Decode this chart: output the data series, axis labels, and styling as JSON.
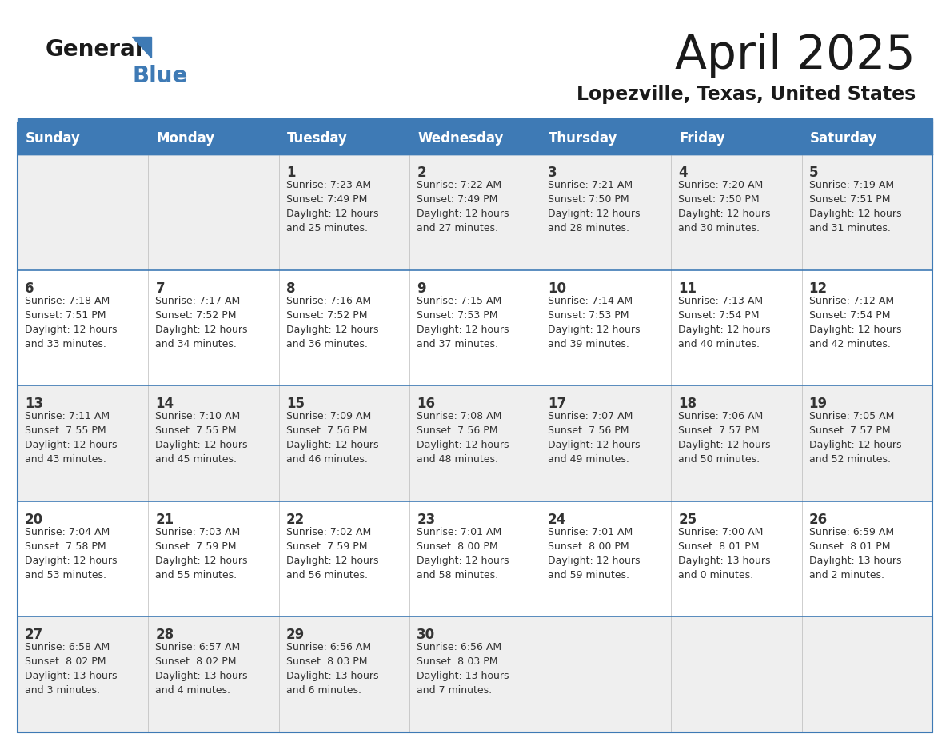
{
  "title": "April 2025",
  "subtitle": "Lopezville, Texas, United States",
  "header_bg_color": "#3E7AB5",
  "header_text_color": "#FFFFFF",
  "cell_bg_color_odd": "#EFEFEF",
  "cell_bg_color_even": "#FFFFFF",
  "text_color": "#333333",
  "border_color": "#3E7AB5",
  "separator_color": "#3E7AB5",
  "days_of_week": [
    "Sunday",
    "Monday",
    "Tuesday",
    "Wednesday",
    "Thursday",
    "Friday",
    "Saturday"
  ],
  "weeks": [
    [
      {
        "day": "",
        "sunrise": "",
        "sunset": "",
        "daylight": ""
      },
      {
        "day": "",
        "sunrise": "",
        "sunset": "",
        "daylight": ""
      },
      {
        "day": "1",
        "sunrise": "Sunrise: 7:23 AM",
        "sunset": "Sunset: 7:49 PM",
        "daylight": "Daylight: 12 hours\nand 25 minutes."
      },
      {
        "day": "2",
        "sunrise": "Sunrise: 7:22 AM",
        "sunset": "Sunset: 7:49 PM",
        "daylight": "Daylight: 12 hours\nand 27 minutes."
      },
      {
        "day": "3",
        "sunrise": "Sunrise: 7:21 AM",
        "sunset": "Sunset: 7:50 PM",
        "daylight": "Daylight: 12 hours\nand 28 minutes."
      },
      {
        "day": "4",
        "sunrise": "Sunrise: 7:20 AM",
        "sunset": "Sunset: 7:50 PM",
        "daylight": "Daylight: 12 hours\nand 30 minutes."
      },
      {
        "day": "5",
        "sunrise": "Sunrise: 7:19 AM",
        "sunset": "Sunset: 7:51 PM",
        "daylight": "Daylight: 12 hours\nand 31 minutes."
      }
    ],
    [
      {
        "day": "6",
        "sunrise": "Sunrise: 7:18 AM",
        "sunset": "Sunset: 7:51 PM",
        "daylight": "Daylight: 12 hours\nand 33 minutes."
      },
      {
        "day": "7",
        "sunrise": "Sunrise: 7:17 AM",
        "sunset": "Sunset: 7:52 PM",
        "daylight": "Daylight: 12 hours\nand 34 minutes."
      },
      {
        "day": "8",
        "sunrise": "Sunrise: 7:16 AM",
        "sunset": "Sunset: 7:52 PM",
        "daylight": "Daylight: 12 hours\nand 36 minutes."
      },
      {
        "day": "9",
        "sunrise": "Sunrise: 7:15 AM",
        "sunset": "Sunset: 7:53 PM",
        "daylight": "Daylight: 12 hours\nand 37 minutes."
      },
      {
        "day": "10",
        "sunrise": "Sunrise: 7:14 AM",
        "sunset": "Sunset: 7:53 PM",
        "daylight": "Daylight: 12 hours\nand 39 minutes."
      },
      {
        "day": "11",
        "sunrise": "Sunrise: 7:13 AM",
        "sunset": "Sunset: 7:54 PM",
        "daylight": "Daylight: 12 hours\nand 40 minutes."
      },
      {
        "day": "12",
        "sunrise": "Sunrise: 7:12 AM",
        "sunset": "Sunset: 7:54 PM",
        "daylight": "Daylight: 12 hours\nand 42 minutes."
      }
    ],
    [
      {
        "day": "13",
        "sunrise": "Sunrise: 7:11 AM",
        "sunset": "Sunset: 7:55 PM",
        "daylight": "Daylight: 12 hours\nand 43 minutes."
      },
      {
        "day": "14",
        "sunrise": "Sunrise: 7:10 AM",
        "sunset": "Sunset: 7:55 PM",
        "daylight": "Daylight: 12 hours\nand 45 minutes."
      },
      {
        "day": "15",
        "sunrise": "Sunrise: 7:09 AM",
        "sunset": "Sunset: 7:56 PM",
        "daylight": "Daylight: 12 hours\nand 46 minutes."
      },
      {
        "day": "16",
        "sunrise": "Sunrise: 7:08 AM",
        "sunset": "Sunset: 7:56 PM",
        "daylight": "Daylight: 12 hours\nand 48 minutes."
      },
      {
        "day": "17",
        "sunrise": "Sunrise: 7:07 AM",
        "sunset": "Sunset: 7:56 PM",
        "daylight": "Daylight: 12 hours\nand 49 minutes."
      },
      {
        "day": "18",
        "sunrise": "Sunrise: 7:06 AM",
        "sunset": "Sunset: 7:57 PM",
        "daylight": "Daylight: 12 hours\nand 50 minutes."
      },
      {
        "day": "19",
        "sunrise": "Sunrise: 7:05 AM",
        "sunset": "Sunset: 7:57 PM",
        "daylight": "Daylight: 12 hours\nand 52 minutes."
      }
    ],
    [
      {
        "day": "20",
        "sunrise": "Sunrise: 7:04 AM",
        "sunset": "Sunset: 7:58 PM",
        "daylight": "Daylight: 12 hours\nand 53 minutes."
      },
      {
        "day": "21",
        "sunrise": "Sunrise: 7:03 AM",
        "sunset": "Sunset: 7:59 PM",
        "daylight": "Daylight: 12 hours\nand 55 minutes."
      },
      {
        "day": "22",
        "sunrise": "Sunrise: 7:02 AM",
        "sunset": "Sunset: 7:59 PM",
        "daylight": "Daylight: 12 hours\nand 56 minutes."
      },
      {
        "day": "23",
        "sunrise": "Sunrise: 7:01 AM",
        "sunset": "Sunset: 8:00 PM",
        "daylight": "Daylight: 12 hours\nand 58 minutes."
      },
      {
        "day": "24",
        "sunrise": "Sunrise: 7:01 AM",
        "sunset": "Sunset: 8:00 PM",
        "daylight": "Daylight: 12 hours\nand 59 minutes."
      },
      {
        "day": "25",
        "sunrise": "Sunrise: 7:00 AM",
        "sunset": "Sunset: 8:01 PM",
        "daylight": "Daylight: 13 hours\nand 0 minutes."
      },
      {
        "day": "26",
        "sunrise": "Sunrise: 6:59 AM",
        "sunset": "Sunset: 8:01 PM",
        "daylight": "Daylight: 13 hours\nand 2 minutes."
      }
    ],
    [
      {
        "day": "27",
        "sunrise": "Sunrise: 6:58 AM",
        "sunset": "Sunset: 8:02 PM",
        "daylight": "Daylight: 13 hours\nand 3 minutes."
      },
      {
        "day": "28",
        "sunrise": "Sunrise: 6:57 AM",
        "sunset": "Sunset: 8:02 PM",
        "daylight": "Daylight: 13 hours\nand 4 minutes."
      },
      {
        "day": "29",
        "sunrise": "Sunrise: 6:56 AM",
        "sunset": "Sunset: 8:03 PM",
        "daylight": "Daylight: 13 hours\nand 6 minutes."
      },
      {
        "day": "30",
        "sunrise": "Sunrise: 6:56 AM",
        "sunset": "Sunset: 8:03 PM",
        "daylight": "Daylight: 13 hours\nand 7 minutes."
      },
      {
        "day": "",
        "sunrise": "",
        "sunset": "",
        "daylight": ""
      },
      {
        "day": "",
        "sunrise": "",
        "sunset": "",
        "daylight": ""
      },
      {
        "day": "",
        "sunrise": "",
        "sunset": "",
        "daylight": ""
      }
    ]
  ],
  "logo_general_color": "#1a1a1a",
  "logo_blue_color": "#3E7AB5",
  "title_fontsize": 42,
  "subtitle_fontsize": 17,
  "header_fontsize": 12,
  "day_num_fontsize": 12,
  "cell_text_fontsize": 9
}
